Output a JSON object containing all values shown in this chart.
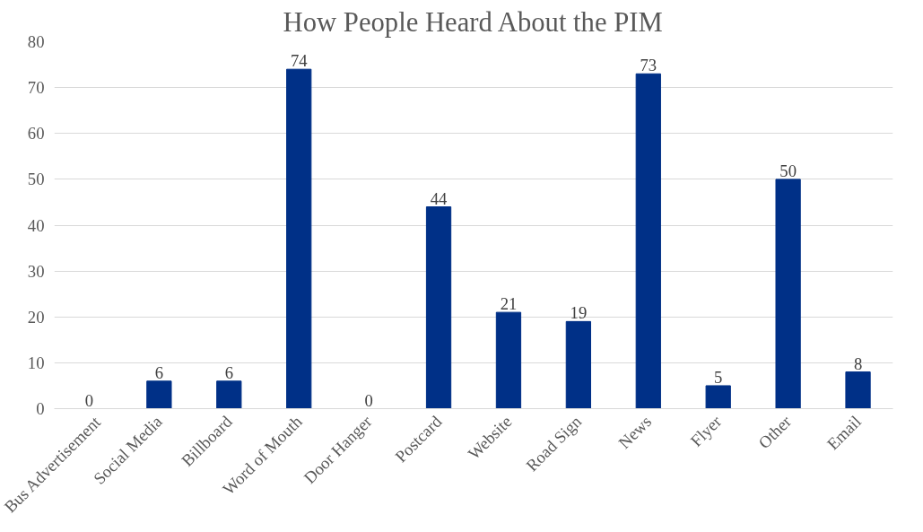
{
  "chart_data": {
    "type": "bar",
    "title": "How People Heard About the PIM",
    "categories": [
      "Bus Advertisement",
      "Social Media",
      "Billboard",
      "Word of Mouth",
      "Door Hanger",
      "Postcard",
      "Website",
      "Road Sign",
      "News",
      "Flyer",
      "Other",
      "Email"
    ],
    "values": [
      0,
      6,
      6,
      74,
      0,
      44,
      21,
      19,
      73,
      5,
      50,
      8
    ],
    "color": "#003087",
    "ylim": [
      0,
      80
    ],
    "yticks": [
      0,
      10,
      20,
      30,
      40,
      50,
      60,
      70,
      80
    ],
    "grid": "y",
    "data_labels": true
  }
}
